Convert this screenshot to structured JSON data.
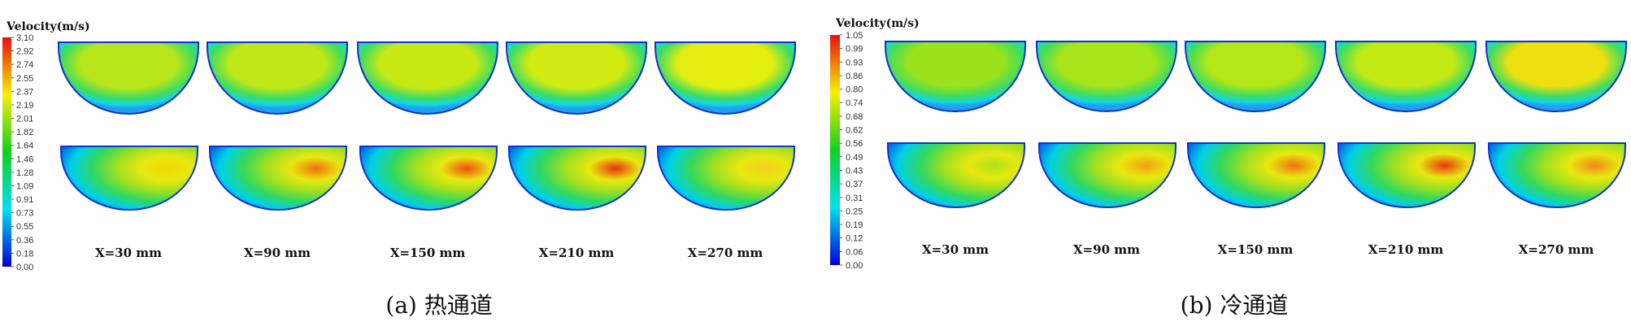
{
  "panels": [
    {
      "caption": "(a) 热通道",
      "colorbar": {
        "title": "Velocity(m/s)",
        "ticks": [
          "3.10",
          "2.92",
          "2.74",
          "2.55",
          "2.37",
          "2.19",
          "2.01",
          "1.82",
          "1.64",
          "1.46",
          "1.28",
          "1.09",
          "0.91",
          "0.73",
          "0.55",
          "0.36",
          "0.18",
          "0.00"
        ]
      },
      "sections": [
        {
          "label": "X=30 mm",
          "top_peak": "#b8e61a",
          "bottom_peak": "#f0d800"
        },
        {
          "label": "X=90 mm",
          "top_peak": "#c0e818",
          "bottom_peak": "#f07010"
        },
        {
          "label": "X=150 mm",
          "top_peak": "#c8ea14",
          "bottom_peak": "#ee5010"
        },
        {
          "label": "X=210 mm",
          "top_peak": "#d0ec12",
          "bottom_peak": "#e83010"
        },
        {
          "label": "X=270 mm",
          "top_peak": "#e4ee10",
          "bottom_peak": "#f4d020"
        }
      ]
    },
    {
      "caption": "(b) 冷通道",
      "colorbar": {
        "title": "Velocity(m/s)",
        "ticks": [
          "1.05",
          "0.99",
          "0.93",
          "0.86",
          "0.80",
          "0.74",
          "0.68",
          "0.62",
          "0.56",
          "0.49",
          "0.43",
          "0.37",
          "0.31",
          "0.25",
          "0.19",
          "0.12",
          "0.06",
          "0.00"
        ]
      },
      "sections": [
        {
          "label": "X=30 mm",
          "top_peak": "#9ae21c",
          "bottom_peak": "#a8e41a"
        },
        {
          "label": "X=90 mm",
          "top_peak": "#a8e41a",
          "bottom_peak": "#f4a010"
        },
        {
          "label": "X=150 mm",
          "top_peak": "#b4e618",
          "bottom_peak": "#f07010"
        },
        {
          "label": "X=210 mm",
          "top_peak": "#c4ea16",
          "bottom_peak": "#e83410"
        },
        {
          "label": "X=270 mm",
          "top_peak": "#eee010",
          "bottom_peak": "#f08818"
        }
      ]
    }
  ]
}
